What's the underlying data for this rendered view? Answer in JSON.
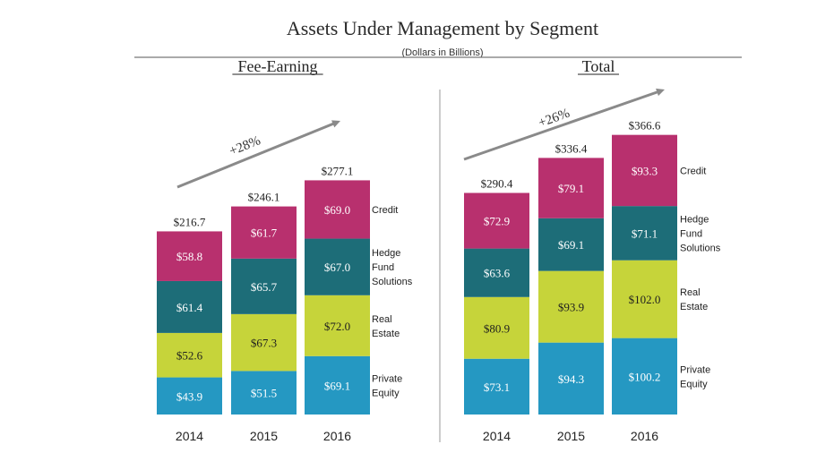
{
  "title": "Assets Under Management by Segment",
  "subtitle": "(Dollars in Billions)",
  "colors": {
    "private_equity": "#2598c2",
    "real_estate": "#c6d43a",
    "hedge_fund": "#1d6d78",
    "credit": "#b8306e",
    "arrow": "#8a8a8a",
    "rule": "#777777"
  },
  "chart_data": [
    {
      "type": "bar",
      "stacked": true,
      "title": "Fee-Earning",
      "categories": [
        "2014",
        "2015",
        "2016"
      ],
      "series": [
        {
          "name": "Private Equity",
          "values": [
            43.9,
            51.5,
            69.1
          ],
          "labels": [
            "$43.9",
            "$51.5",
            "$69.1"
          ]
        },
        {
          "name": "Real Estate",
          "values": [
            52.6,
            67.3,
            72.0
          ],
          "labels": [
            "$52.6",
            "$67.3",
            "$72.0"
          ]
        },
        {
          "name": "Hedge Fund Solutions",
          "values": [
            61.4,
            65.7,
            67.0
          ],
          "labels": [
            "$61.4",
            "$65.7",
            "$67.0"
          ]
        },
        {
          "name": "Credit",
          "values": [
            58.8,
            61.7,
            69.0
          ],
          "labels": [
            "$58.8",
            "$61.7",
            "$69.0"
          ]
        }
      ],
      "totals": [
        216.7,
        246.1,
        277.1
      ],
      "total_labels": [
        "$216.7",
        "$246.1",
        "$277.1"
      ],
      "growth": "+28%",
      "legend": [
        [
          "Private",
          "Equity"
        ],
        [
          "Real",
          "Estate"
        ],
        [
          "Hedge",
          "Fund",
          "Solutions"
        ],
        [
          "Credit"
        ]
      ]
    },
    {
      "type": "bar",
      "stacked": true,
      "title": "Total",
      "categories": [
        "2014",
        "2015",
        "2016"
      ],
      "series": [
        {
          "name": "Private Equity",
          "values": [
            73.1,
            94.3,
            100.2
          ],
          "labels": [
            "$73.1",
            "$94.3",
            "$100.2"
          ]
        },
        {
          "name": "Real Estate",
          "values": [
            80.9,
            93.9,
            102.0
          ],
          "labels": [
            "$80.9",
            "$93.9",
            "$102.0"
          ]
        },
        {
          "name": "Hedge Fund Solutions",
          "values": [
            63.6,
            69.1,
            71.1
          ],
          "labels": [
            "$63.6",
            "$69.1",
            "$71.1"
          ]
        },
        {
          "name": "Credit",
          "values": [
            72.9,
            79.1,
            93.3
          ],
          "labels": [
            "$72.9",
            "$79.1",
            "$93.3"
          ]
        }
      ],
      "totals": [
        290.4,
        336.4,
        366.6
      ],
      "total_labels": [
        "$290.4",
        "$336.4",
        "$366.6"
      ],
      "growth": "+26%",
      "legend": [
        [
          "Private",
          "Equity"
        ],
        [
          "Real",
          "Estate"
        ],
        [
          "Hedge",
          "Fund",
          "Solutions"
        ],
        [
          "Credit"
        ]
      ]
    }
  ]
}
